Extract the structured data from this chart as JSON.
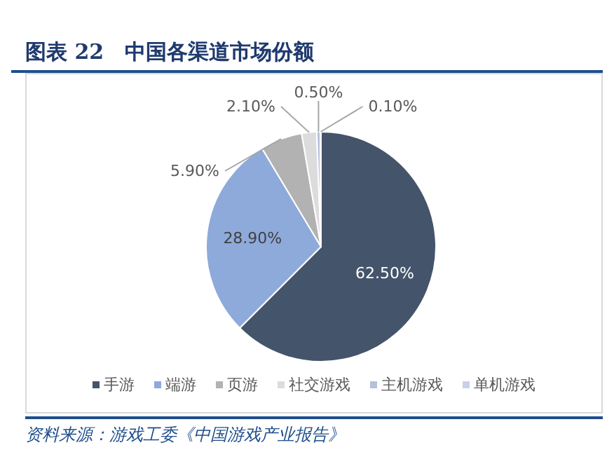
{
  "chart_data": {
    "type": "pie",
    "title": "图表 22　中国各渠道市场份额",
    "categories": [
      "手游",
      "端游",
      "页游",
      "社交游戏",
      "主机游戏",
      "单机游戏"
    ],
    "values": [
      62.5,
      28.9,
      5.9,
      2.1,
      0.5,
      0.1
    ],
    "colors": [
      "#44546a",
      "#8eaadb",
      "#b2b2b2",
      "#dcdcdc",
      "#b4c0dc",
      "#c8d2e6"
    ],
    "value_labels": [
      "62.50%",
      "28.90%",
      "5.90%",
      "2.10%",
      "0.50%",
      "0.10%"
    ],
    "legend": "bottom",
    "annotations": [
      "资料来源：游戏工委《中国游戏产业报告》"
    ]
  }
}
